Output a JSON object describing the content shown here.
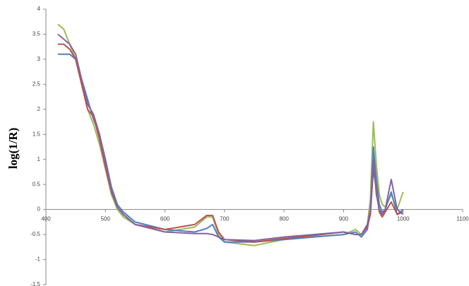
{
  "chart_data": {
    "type": "line",
    "y_label": "log(1/R)",
    "x": [
      420,
      430,
      440,
      450,
      460,
      470,
      480,
      490,
      500,
      510,
      520,
      530,
      550,
      600,
      650,
      670,
      680,
      690,
      700,
      750,
      800,
      850,
      900,
      920,
      930,
      940,
      945,
      950,
      955,
      960,
      965,
      970,
      980,
      990,
      1000
    ],
    "series": [
      {
        "name": null,
        "color": "#9bbb59",
        "values": [
          3.7,
          3.6,
          3.3,
          3.0,
          2.5,
          2.0,
          1.7,
          1.3,
          0.8,
          0.3,
          0.0,
          -0.15,
          -0.3,
          -0.45,
          -0.35,
          -0.15,
          -0.15,
          -0.5,
          -0.65,
          -0.72,
          -0.6,
          -0.55,
          -0.5,
          -0.4,
          -0.5,
          -0.3,
          0.2,
          1.75,
          0.9,
          0.3,
          0.1,
          0.05,
          0.3,
          0.0,
          0.35
        ]
      },
      {
        "name": null,
        "color": "#4f81bd",
        "values": [
          3.1,
          3.1,
          3.1,
          3.0,
          2.6,
          2.2,
          1.8,
          1.5,
          1.0,
          0.45,
          0.1,
          -0.05,
          -0.25,
          -0.4,
          -0.45,
          -0.38,
          -0.3,
          -0.55,
          -0.65,
          -0.65,
          -0.6,
          -0.55,
          -0.5,
          -0.45,
          -0.55,
          -0.4,
          0.0,
          1.25,
          0.6,
          0.1,
          -0.05,
          0.0,
          0.35,
          -0.1,
          0.0
        ]
      },
      {
        "name": null,
        "color": "#c0504d",
        "values": [
          3.3,
          3.3,
          3.2,
          3.0,
          2.5,
          2.0,
          1.85,
          1.4,
          0.85,
          0.35,
          0.05,
          -0.1,
          -0.3,
          -0.4,
          -0.3,
          -0.12,
          -0.12,
          -0.45,
          -0.6,
          -0.65,
          -0.58,
          -0.52,
          -0.45,
          -0.5,
          -0.5,
          -0.35,
          -0.1,
          0.8,
          0.4,
          -0.05,
          -0.15,
          -0.05,
          0.15,
          -0.1,
          -0.05
        ]
      },
      {
        "name": null,
        "color": "#8064a2",
        "values": [
          3.5,
          3.4,
          3.3,
          3.1,
          2.6,
          2.1,
          1.9,
          1.5,
          0.95,
          0.4,
          0.05,
          -0.1,
          -0.3,
          -0.45,
          -0.48,
          -0.48,
          -0.5,
          -0.55,
          -0.6,
          -0.62,
          -0.55,
          -0.5,
          -0.45,
          -0.5,
          -0.5,
          -0.3,
          0.0,
          1.0,
          0.3,
          0.0,
          -0.1,
          0.0,
          0.6,
          0.0,
          -0.1
        ]
      }
    ],
    "xlim": [
      400,
      1100
    ],
    "xticks": [
      400,
      500,
      600,
      700,
      800,
      900,
      1000,
      1100
    ],
    "ylim": [
      -1.5,
      4
    ],
    "yticks": [
      -1.5,
      -1,
      -0.5,
      0,
      0.5,
      1,
      1.5,
      2,
      2.5,
      3,
      3.5,
      4
    ]
  }
}
